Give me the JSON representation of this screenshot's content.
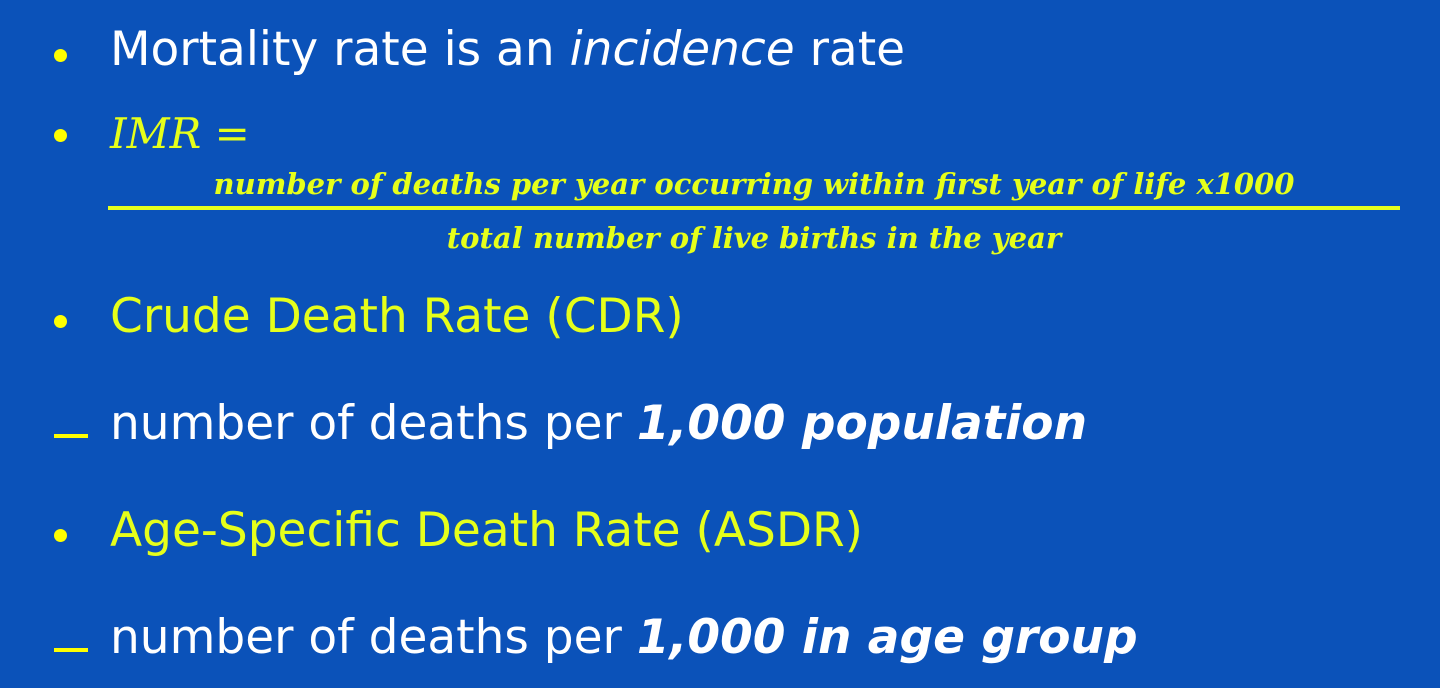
{
  "bullets": {
    "mortality": {
      "prefix": "Mortality rate is an ",
      "emphasis": "incidence",
      "suffix": " rate"
    },
    "imr": {
      "label": "IMR =",
      "numerator": "number of deaths per year occurring within first year of life x1000",
      "denominator": "total number of live births in the year"
    },
    "cdr": {
      "heading": "Crude Death Rate (CDR)",
      "detail_prefix": "number of deaths per ",
      "detail_emphasis": "1,000 population"
    },
    "asdr": {
      "heading": "Age-Specific Death Rate (ASDR)",
      "detail_prefix": "number of deaths per ",
      "detail_emphasis": "1,000 in age group"
    }
  },
  "colors": {
    "background": "#0b52b9",
    "accent_yellow": "#e6ff1a",
    "text_white": "#ffffff"
  }
}
